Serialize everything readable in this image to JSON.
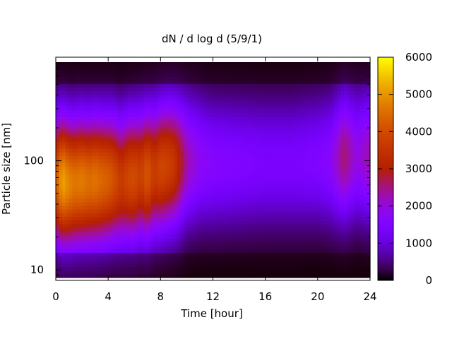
{
  "chart_data": {
    "type": "heatmap",
    "title": "dN / d log d (5/9/1)",
    "xlabel": "Time [hour]",
    "ylabel": "Particle size [nm]",
    "xlim": [
      0,
      24
    ],
    "ylim": [
      8.5,
      800
    ],
    "y_scale": "log",
    "x_ticks": [
      0,
      4,
      8,
      12,
      16,
      20,
      24
    ],
    "y_ticks": [
      10,
      100
    ],
    "colorbar": {
      "min": 0,
      "max": 6000,
      "ticks": [
        0,
        1000,
        2000,
        3000,
        4000,
        5000,
        6000
      ],
      "colormap": "gnuplot (black-purple-red-orange-yellow)"
    },
    "grid": false,
    "peak_profile": {
      "hours": [
        0,
        0.5,
        1,
        1.5,
        2,
        2.5,
        3,
        3.5,
        4,
        4.5,
        5,
        5.5,
        6,
        6.5,
        7,
        7.5,
        8,
        8.5,
        9,
        9.5,
        10,
        11,
        12,
        14,
        16,
        18,
        20,
        21,
        22,
        23,
        24
      ],
      "peak_concentration": [
        4200,
        5200,
        4800,
        4600,
        4700,
        4500,
        4600,
        4400,
        4300,
        4000,
        3600,
        3900,
        4000,
        3700,
        4200,
        3600,
        3900,
        3800,
        3600,
        3000,
        2300,
        1800,
        1600,
        1500,
        1400,
        1400,
        1500,
        1700,
        2600,
        1900,
        2300
      ],
      "peak_diameter_nm": [
        65,
        65,
        62,
        63,
        65,
        64,
        66,
        66,
        67,
        68,
        65,
        70,
        70,
        75,
        75,
        80,
        85,
        90,
        92,
        95,
        100,
        100,
        95,
        95,
        95,
        95,
        100,
        100,
        110,
        110,
        110
      ]
    }
  }
}
